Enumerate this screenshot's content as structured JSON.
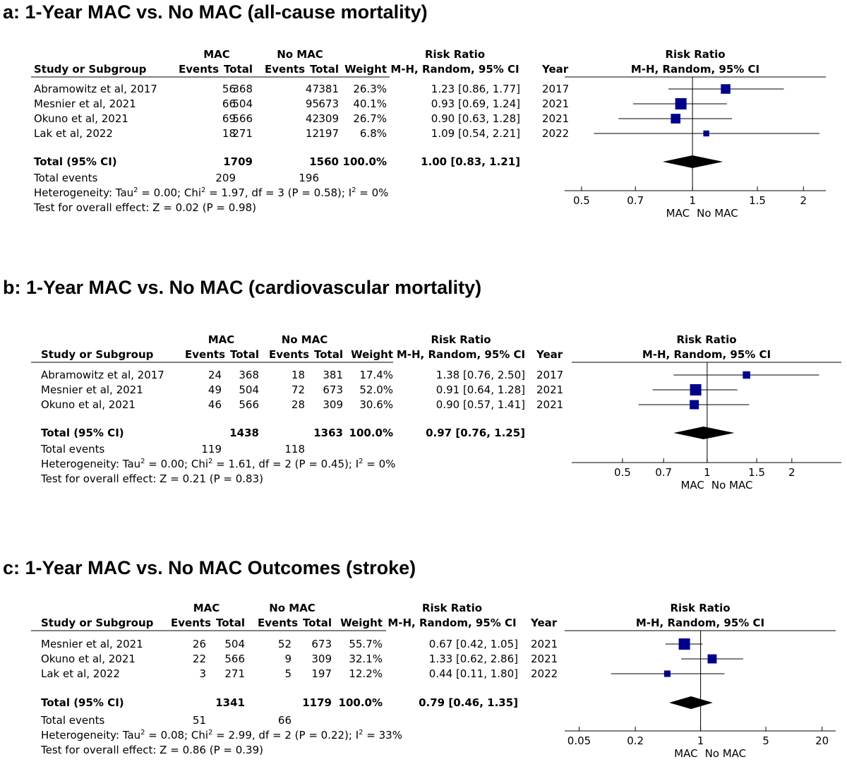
{
  "chart_data": [
    {
      "type": "forest-plot",
      "title": "a: 1-Year MAC vs. No MAC (all-cause mortality)",
      "headers": {
        "study": "Study or Subgroup",
        "group1": "MAC",
        "group2": "No MAC",
        "events": "Events",
        "total": "Total",
        "weight": "Weight",
        "rr": "Risk Ratio",
        "rr_method": "M-H, Random, 95% CI",
        "year": "Year"
      },
      "studies": [
        {
          "name": "Abramowitz et al, 2017",
          "e1": "56",
          "n1": "368",
          "e2": "47",
          "n2": "381",
          "weight": "26.3%",
          "ci": "1.23 [0.86, 1.77]",
          "year": "2017",
          "rr": 1.23,
          "lo": 0.86,
          "hi": 1.77,
          "w": 26.3
        },
        {
          "name": "Mesnier et al, 2021",
          "e1": "66",
          "n1": "504",
          "e2": "95",
          "n2": "673",
          "weight": "40.1%",
          "ci": "0.93 [0.69, 1.24]",
          "year": "2021",
          "rr": 0.93,
          "lo": 0.69,
          "hi": 1.24,
          "w": 40.1
        },
        {
          "name": "Okuno et al, 2021",
          "e1": "69",
          "n1": "566",
          "e2": "42",
          "n2": "309",
          "weight": "26.7%",
          "ci": "0.90 [0.63, 1.28]",
          "year": "2021",
          "rr": 0.9,
          "lo": 0.63,
          "hi": 1.28,
          "w": 26.7
        },
        {
          "name": "Lak et al, 2022",
          "e1": "18",
          "n1": "271",
          "e2": "12",
          "n2": "197",
          "weight": "6.8%",
          "ci": "1.09 [0.54, 2.21]",
          "year": "2022",
          "rr": 1.09,
          "lo": 0.54,
          "hi": 2.21,
          "w": 6.8
        }
      ],
      "total": {
        "label": "Total (95% CI)",
        "n1": "1709",
        "n2": "1560",
        "weight": "100.0%",
        "ci": "1.00 [0.83, 1.21]",
        "rr": 1.0,
        "lo": 0.83,
        "hi": 1.21
      },
      "total_events": {
        "label": "Total events",
        "e1": "209",
        "e2": "196"
      },
      "heterogeneity": {
        "prefix": "Heterogeneity: Tau",
        "tau2": " = 0.00; Chi",
        "chi2": " = 1.97, df = 3 (P = 0.58); I",
        "i2": " = 0%"
      },
      "overall_effect": "Test for overall effect: Z = 0.02 (P = 0.98)",
      "axis": {
        "scale": "log",
        "min": 0.45,
        "max": 2.3,
        "ticks": [
          "0.5",
          "0.7",
          "1",
          "1.5",
          "2"
        ],
        "label_left": "MAC",
        "label_right": "No MAC"
      }
    },
    {
      "type": "forest-plot",
      "title": "b: 1-Year MAC vs. No MAC (cardiovascular mortality)",
      "headers": {
        "study": "Study or Subgroup",
        "group1": "MAC",
        "group2": "No MAC",
        "events": "Events",
        "total": "Total",
        "weight": "Weight",
        "rr": "Risk Ratio",
        "rr_method": "M-H, Random, 95% CI",
        "year": "Year"
      },
      "studies": [
        {
          "name": "Abramowitz et al, 2017",
          "e1": "24",
          "n1": "368",
          "e2": "18",
          "n2": "381",
          "weight": "17.4%",
          "ci": "1.38 [0.76, 2.50]",
          "year": "2017",
          "rr": 1.38,
          "lo": 0.76,
          "hi": 2.5,
          "w": 17.4
        },
        {
          "name": "Mesnier et al, 2021",
          "e1": "49",
          "n1": "504",
          "e2": "72",
          "n2": "673",
          "weight": "52.0%",
          "ci": "0.91 [0.64, 1.28]",
          "year": "2021",
          "rr": 0.91,
          "lo": 0.64,
          "hi": 1.28,
          "w": 52.0
        },
        {
          "name": "Okuno et al, 2021",
          "e1": "46",
          "n1": "566",
          "e2": "28",
          "n2": "309",
          "weight": "30.6%",
          "ci": "0.90 [0.57, 1.41]",
          "year": "2021",
          "rr": 0.9,
          "lo": 0.57,
          "hi": 1.41,
          "w": 30.6
        }
      ],
      "total": {
        "label": "Total (95% CI)",
        "n1": "1438",
        "n2": "1363",
        "weight": "100.0%",
        "ci": "0.97 [0.76, 1.25]",
        "rr": 0.97,
        "lo": 0.76,
        "hi": 1.25
      },
      "total_events": {
        "label": "Total events",
        "e1": "119",
        "e2": "118"
      },
      "heterogeneity": {
        "prefix": "Heterogeneity: Tau",
        "tau2": " = 0.00; Chi",
        "chi2": " = 1.61, df = 2 (P = 0.45); I",
        "i2": " = 0%"
      },
      "overall_effect": "Test for overall effect: Z = 0.21 (P = 0.83)",
      "axis": {
        "scale": "log",
        "min": 0.33,
        "max": 3.0,
        "ticks": [
          "0.5",
          "0.7",
          "1",
          "1.5",
          "2"
        ],
        "label_left": "MAC",
        "label_right": "No MAC"
      }
    },
    {
      "type": "forest-plot",
      "title": "c: 1-Year MAC vs. No MAC Outcomes (stroke)",
      "headers": {
        "study": "Study or Subgroup",
        "group1": "MAC",
        "group2": "No MAC",
        "events": "Events",
        "total": "Total",
        "weight": "Weight",
        "rr": "Risk Ratio",
        "rr_method": "M-H, Random, 95% CI",
        "year": "Year"
      },
      "studies": [
        {
          "name": "Mesnier et al, 2021",
          "e1": "26",
          "n1": "504",
          "e2": "52",
          "n2": "673",
          "weight": "55.7%",
          "ci": "0.67 [0.42, 1.05]",
          "year": "2021",
          "rr": 0.67,
          "lo": 0.42,
          "hi": 1.05,
          "w": 55.7
        },
        {
          "name": "Okuno et al, 2021",
          "e1": "22",
          "n1": "566",
          "e2": "9",
          "n2": "309",
          "weight": "32.1%",
          "ci": "1.33 [0.62, 2.86]",
          "year": "2021",
          "rr": 1.33,
          "lo": 0.62,
          "hi": 2.86,
          "w": 32.1
        },
        {
          "name": "Lak et al, 2022",
          "e1": "3",
          "n1": "271",
          "e2": "5",
          "n2": "197",
          "weight": "12.2%",
          "ci": "0.44 [0.11, 1.80]",
          "year": "2022",
          "rr": 0.44,
          "lo": 0.11,
          "hi": 1.8,
          "w": 12.2
        }
      ],
      "total": {
        "label": "Total (95% CI)",
        "n1": "1341",
        "n2": "1179",
        "weight": "100.0%",
        "ci": "0.79 [0.46, 1.35]",
        "rr": 0.79,
        "lo": 0.46,
        "hi": 1.35
      },
      "total_events": {
        "label": "Total events",
        "e1": "51",
        "e2": "66"
      },
      "heterogeneity": {
        "prefix": "Heterogeneity: Tau",
        "tau2": " = 0.08; Chi",
        "chi2": " = 2.99, df = 2 (P = 0.22); I",
        "i2": " = 33%"
      },
      "overall_effect": "Test for overall effect: Z = 0.86 (P = 0.39)",
      "axis": {
        "scale": "log",
        "min": 0.035,
        "max": 28,
        "ticks": [
          "0.05",
          "0.2",
          "1",
          "5",
          "20"
        ],
        "label_left": "MAC",
        "label_right": "No MAC"
      }
    }
  ],
  "colors": {
    "marker": "#00008b",
    "diamond": "#000000",
    "line": "#000000"
  }
}
